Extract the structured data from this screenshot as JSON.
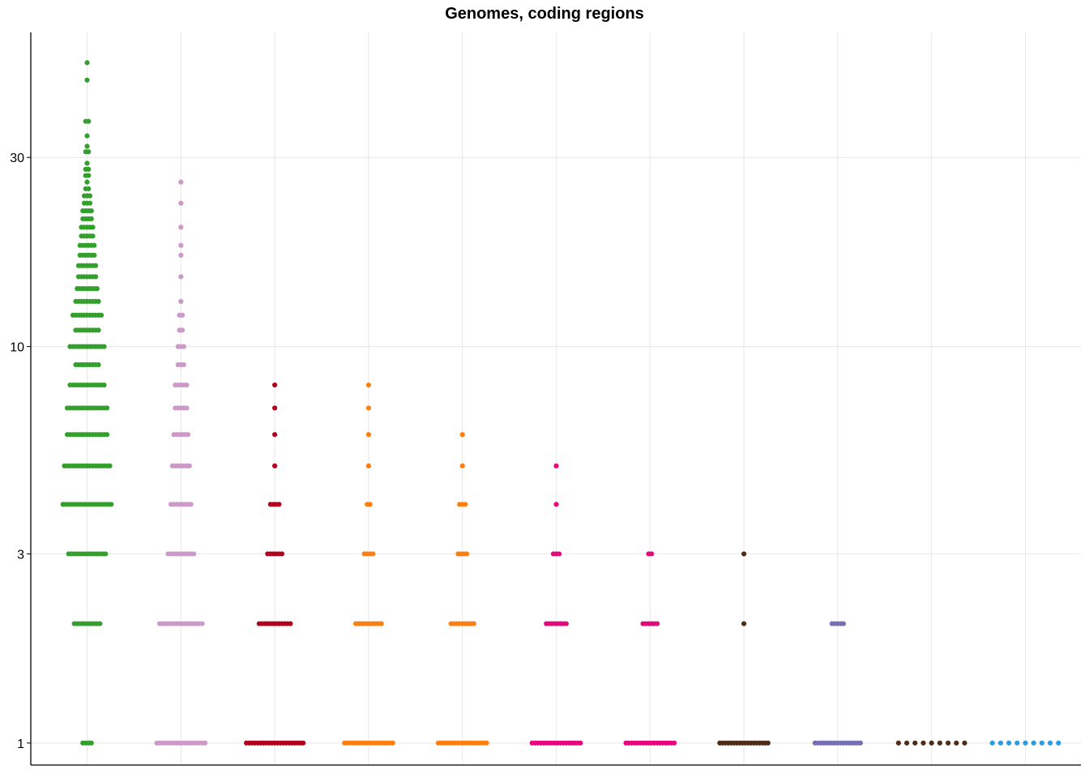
{
  "chart_data": {
    "type": "scatter",
    "title": "Genomes, coding regions",
    "xlabel": "",
    "ylabel": "",
    "y_scale": "log",
    "ylim": [
      0.88,
      62
    ],
    "y_ticks": [
      1,
      3,
      10,
      30
    ],
    "grid": true,
    "legend": "none",
    "series": [
      {
        "color": "#33a02c",
        "points": [
          [
            1,
            4
          ],
          [
            2,
            10
          ],
          [
            3,
            14
          ],
          [
            4,
            18
          ],
          [
            5,
            17
          ],
          [
            6,
            15
          ],
          [
            7,
            15
          ],
          [
            8,
            13
          ],
          [
            9,
            9
          ],
          [
            10,
            13
          ],
          [
            11,
            9
          ],
          [
            12,
            11
          ],
          [
            13,
            9
          ],
          [
            14,
            8
          ],
          [
            15,
            7
          ],
          [
            16,
            7
          ],
          [
            17,
            6
          ],
          [
            18,
            6
          ],
          [
            19,
            5
          ],
          [
            20,
            5
          ],
          [
            21,
            4
          ],
          [
            22,
            4
          ],
          [
            23,
            3
          ],
          [
            24,
            3
          ],
          [
            25,
            2
          ],
          [
            26,
            1
          ],
          [
            27,
            2
          ],
          [
            28,
            2
          ],
          [
            29,
            1
          ],
          [
            31,
            2
          ],
          [
            32,
            1
          ],
          [
            34,
            1
          ],
          [
            37,
            2
          ],
          [
            47,
            1
          ],
          [
            52,
            1
          ]
        ]
      },
      {
        "color": "#cc99c9",
        "points": [
          [
            1,
            18
          ],
          [
            2,
            16
          ],
          [
            3,
            10
          ],
          [
            4,
            8
          ],
          [
            5,
            7
          ],
          [
            6,
            6
          ],
          [
            7,
            5
          ],
          [
            8,
            5
          ],
          [
            9,
            3
          ],
          [
            10,
            3
          ],
          [
            11,
            2
          ],
          [
            12,
            2
          ],
          [
            13,
            1
          ],
          [
            15,
            1
          ],
          [
            17,
            1
          ],
          [
            18,
            1
          ],
          [
            20,
            1
          ],
          [
            23,
            1
          ],
          [
            26,
            1
          ]
        ]
      },
      {
        "color": "#b2001d",
        "points": [
          [
            1,
            21
          ],
          [
            2,
            12
          ],
          [
            3,
            6
          ],
          [
            4,
            4
          ],
          [
            5,
            1
          ],
          [
            6,
            1
          ],
          [
            7,
            1
          ],
          [
            8,
            1
          ]
        ]
      },
      {
        "color": "#ff7f0e",
        "points": [
          [
            1,
            18
          ],
          [
            2,
            10
          ],
          [
            3,
            4
          ],
          [
            4,
            2
          ],
          [
            5,
            1
          ],
          [
            6,
            1
          ],
          [
            7,
            1
          ],
          [
            8,
            1
          ]
        ]
      },
      {
        "color": "#ff7f0e",
        "points": [
          [
            1,
            18
          ],
          [
            2,
            9
          ],
          [
            3,
            4
          ],
          [
            4,
            3
          ],
          [
            5,
            1
          ],
          [
            6,
            1
          ]
        ]
      },
      {
        "color": "#e7067c",
        "points": [
          [
            1,
            18
          ],
          [
            2,
            8
          ],
          [
            3,
            3
          ],
          [
            4,
            1
          ],
          [
            5,
            1
          ]
        ]
      },
      {
        "color": "#e7067c",
        "points": [
          [
            1,
            18
          ],
          [
            2,
            6
          ],
          [
            3,
            2
          ]
        ]
      },
      {
        "color": "#4d2d18",
        "points": [
          [
            1,
            18
          ],
          [
            2,
            1
          ],
          [
            3,
            1
          ]
        ]
      },
      {
        "color": "#7570b3",
        "points": [
          [
            1,
            17
          ],
          [
            2,
            5
          ]
        ]
      },
      {
        "color": "#4d2d18",
        "points": [
          [
            1,
            9
          ]
        ]
      },
      {
        "color": "#2b9ce0",
        "points": [
          [
            1,
            9
          ]
        ]
      }
    ]
  }
}
